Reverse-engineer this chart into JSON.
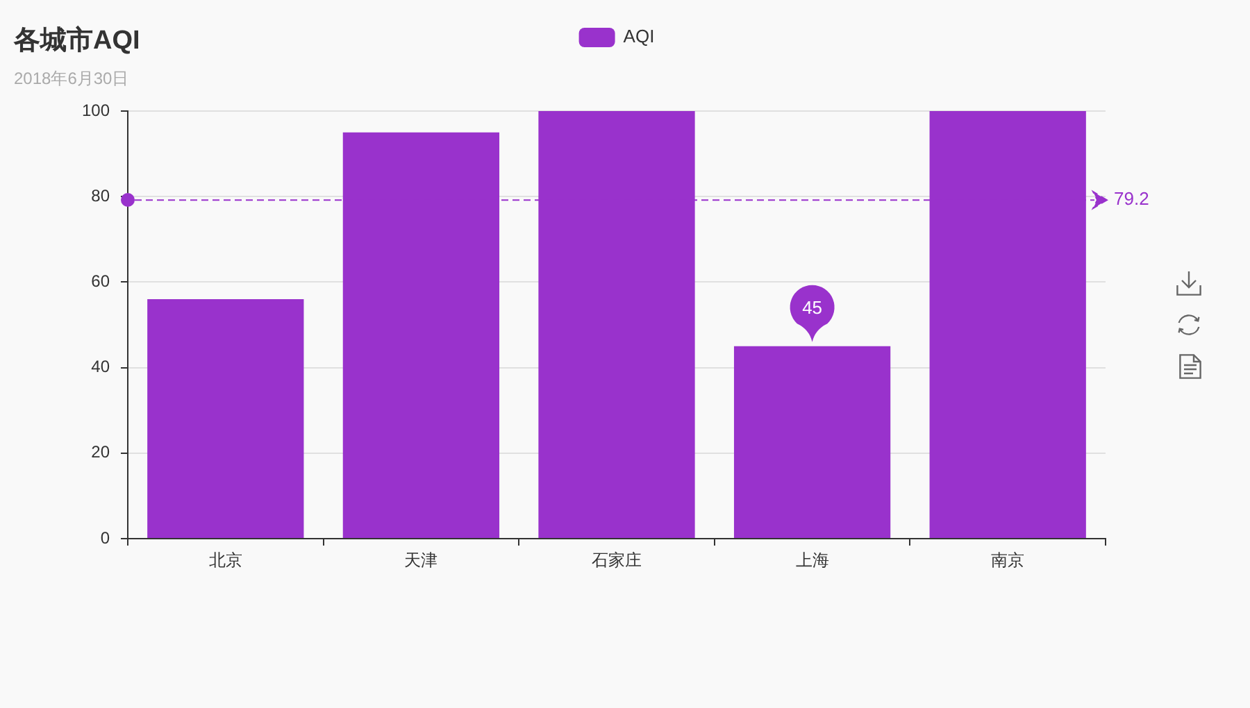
{
  "chart_data": {
    "type": "bar",
    "title": "各城市AQI",
    "subtitle": "2018年6月30日",
    "categories": [
      "北京",
      "天津",
      "石家庄",
      "上海",
      "南京"
    ],
    "series": [
      {
        "name": "AQI",
        "color": "#9932cc",
        "values": [
          56,
          95,
          100,
          45,
          100
        ]
      }
    ],
    "ylim": [
      0,
      100
    ],
    "yticks": [
      0,
      20,
      40,
      60,
      80,
      100
    ],
    "grid": "y",
    "legend": "top",
    "ref_lines": [
      {
        "axis": "y",
        "value": 79.2,
        "label": "79.2",
        "color": "#9932cc",
        "line_style": "dashed"
      }
    ],
    "annotations": [
      {
        "text": "45",
        "x": "上海",
        "y": 45
      }
    ]
  }
}
